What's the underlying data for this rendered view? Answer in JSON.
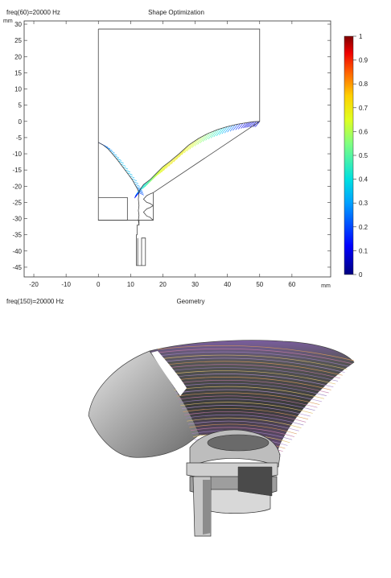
{
  "top_plot": {
    "corner_label": "freq(60)=20000 Hz",
    "title": "Shape Optimization",
    "unit_y": "mm",
    "unit_x": "mm"
  },
  "bottom_plot": {
    "corner_label": "freq(150)=20000 Hz",
    "title": "Geometry"
  },
  "chart_data": [
    {
      "type": "line",
      "title": "Shape Optimization",
      "xlabel": "mm",
      "ylabel": "mm",
      "xlim": [
        -23,
        72
      ],
      "ylim": [
        -48,
        31
      ],
      "x_ticks": [
        -20,
        -10,
        0,
        10,
        20,
        30,
        40,
        50,
        60
      ],
      "y_ticks": [
        30,
        25,
        20,
        15,
        10,
        5,
        0,
        -5,
        -10,
        -15,
        -20,
        -25,
        -30,
        -35,
        -40,
        -45
      ],
      "grid": false,
      "series": [
        {
          "role": "outer-domain",
          "x": [
            0,
            50,
            50,
            17,
            17,
            0,
            0
          ],
          "y": [
            28.5,
            28.5,
            0,
            -22,
            -30.5,
            -30.5,
            28.5
          ]
        },
        {
          "role": "horn-right",
          "x": [
            12.6,
            13,
            14,
            16,
            18,
            20,
            22,
            25,
            28,
            31,
            34,
            37,
            40,
            43,
            46,
            48,
            50
          ],
          "y": [
            -22,
            -21,
            -19.5,
            -18,
            -16,
            -14,
            -12.5,
            -10,
            -7.3,
            -5.3,
            -3.7,
            -2.5,
            -1.6,
            -0.9,
            -0.4,
            -0.1,
            0
          ]
        },
        {
          "role": "horn-left",
          "x": [
            0,
            1.5,
            3,
            4.5,
            6,
            7.5,
            9,
            10.5,
            11.5,
            12.2,
            12.6
          ],
          "y": [
            -6.5,
            -7.3,
            -8.5,
            -10.2,
            -12,
            -14,
            -16,
            -18,
            -19.8,
            -21,
            -22
          ]
        },
        {
          "role": "throat-left",
          "x": [
            12.6,
            12.4,
            12.6,
            12.4,
            12.6,
            12.4,
            12.6
          ],
          "y": [
            -22,
            -24,
            -26,
            -27.5,
            -29,
            -30.5,
            -32
          ]
        },
        {
          "role": "throat-right",
          "x": [
            17,
            16,
            15,
            14,
            15,
            16,
            17,
            16,
            15,
            14,
            15,
            16,
            17
          ],
          "y": [
            -22,
            -22.4,
            -22.9,
            -24,
            -25,
            -25.3,
            -26,
            -26.6,
            -27,
            -28,
            -29.2,
            -29.6,
            -30.5
          ]
        },
        {
          "role": "left-pocket",
          "x": [
            0,
            9,
            9,
            0
          ],
          "y": [
            -23.5,
            -23.5,
            -30.5,
            -30.5
          ]
        },
        {
          "role": "driver-stem",
          "x": [
            12.6,
            12.6,
            12,
            12,
            11.8,
            11.8,
            13.4,
            13.4,
            14.6,
            14.6,
            12.2,
            12.2
          ],
          "y": [
            -30.5,
            -32,
            -32,
            -35,
            -35,
            -44.5,
            -44.5,
            -36,
            -36,
            -44.5,
            -44.5,
            -36
          ]
        }
      ],
      "colorbar": {
        "min": 0,
        "max": 1,
        "ticks": [
          1,
          0.9,
          0.8,
          0.7,
          0.6,
          0.5,
          0.4,
          0.3,
          0.2,
          0.1,
          0
        ],
        "colormap": "rainbow"
      }
    }
  ]
}
